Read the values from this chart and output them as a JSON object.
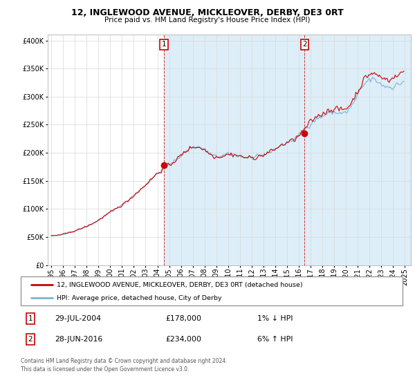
{
  "title": "12, INGLEWOOD AVENUE, MICKLEOVER, DERBY, DE3 0RT",
  "subtitle": "Price paid vs. HM Land Registry's House Price Index (HPI)",
  "legend_label1": "12, INGLEWOOD AVENUE, MICKLEOVER, DERBY, DE3 0RT (detached house)",
  "legend_label2": "HPI: Average price, detached house, City of Derby",
  "footer": "Contains HM Land Registry data © Crown copyright and database right 2024.\nThis data is licensed under the Open Government Licence v3.0.",
  "annotation1_date": "29-JUL-2004",
  "annotation1_price": "£178,000",
  "annotation1_hpi": "1% ↓ HPI",
  "annotation2_date": "28-JUN-2016",
  "annotation2_price": "£234,000",
  "annotation2_hpi": "6% ↑ HPI",
  "sale1_x": 2004.57,
  "sale1_y": 178000,
  "sale2_x": 2016.49,
  "sale2_y": 234000,
  "ylim": [
    0,
    410000
  ],
  "xlim_start": 1994.7,
  "xlim_end": 2025.5,
  "hpi_color": "#7ab3d4",
  "price_color": "#cc0000",
  "hpi_fill_color": "#ddeef8",
  "background_color": "#ffffff",
  "grid_color": "#d8d8d8"
}
